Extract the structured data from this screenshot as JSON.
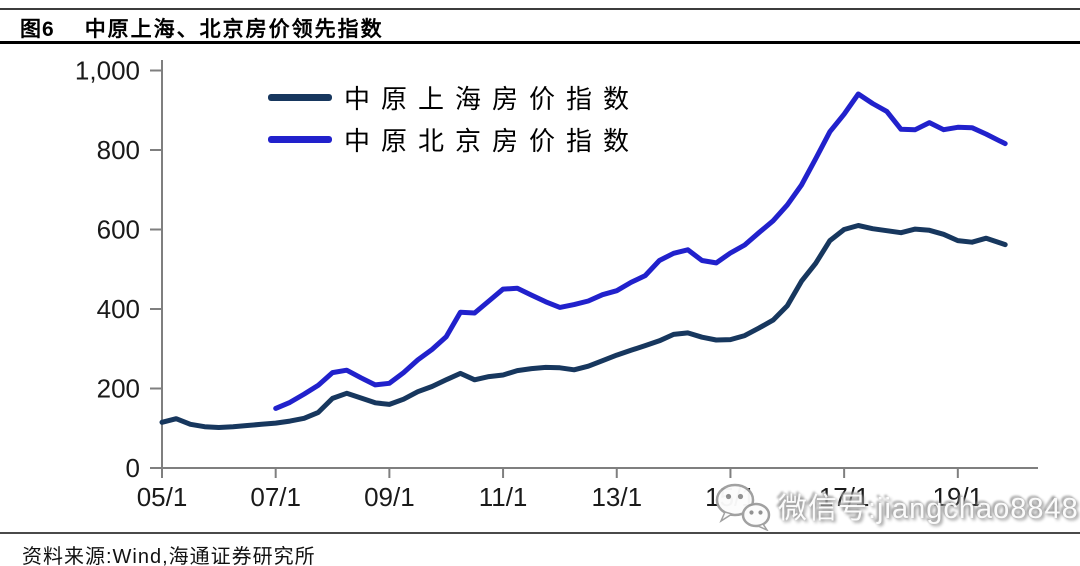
{
  "header": {
    "figure_label": "图6",
    "title": "中原上海、北京房价领先指数"
  },
  "watermark": {
    "icon": "wechat-icon",
    "text": "微信号:jiangchao8848"
  },
  "footer": {
    "source": "资料来源:Wind,海通证券研究所"
  },
  "chart_data": {
    "type": "line",
    "title": "中原上海、北京房价领先指数",
    "xlabel": "",
    "ylabel": "",
    "x_format": "YY/M (year/month)",
    "xticks": [
      "05/1",
      "07/1",
      "09/1",
      "11/1",
      "13/1",
      "15/1",
      "17/1",
      "19/1"
    ],
    "ylim": [
      0,
      1000
    ],
    "yticks": [
      0,
      200,
      400,
      600,
      800,
      1000
    ],
    "ytick_labels": [
      "0",
      "200",
      "400",
      "600",
      "800",
      "1,000"
    ],
    "grid": false,
    "legend_position": "upper-left inside plot",
    "axis_color": "#7f7f7f",
    "series": [
      {
        "name": "中原上海房价指数",
        "color": "#17375E",
        "points": [
          [
            "05/1",
            115
          ],
          [
            "05/4",
            124
          ],
          [
            "05/7",
            110
          ],
          [
            "05/10",
            104
          ],
          [
            "06/1",
            102
          ],
          [
            "06/4",
            104
          ],
          [
            "06/7",
            107
          ],
          [
            "06/10",
            110
          ],
          [
            "07/1",
            113
          ],
          [
            "07/4",
            118
          ],
          [
            "07/7",
            125
          ],
          [
            "07/10",
            140
          ],
          [
            "08/1",
            175
          ],
          [
            "08/4",
            188
          ],
          [
            "08/7",
            176
          ],
          [
            "08/10",
            164
          ],
          [
            "09/1",
            160
          ],
          [
            "09/4",
            173
          ],
          [
            "09/7",
            192
          ],
          [
            "09/10",
            205
          ],
          [
            "10/1",
            222
          ],
          [
            "10/4",
            238
          ],
          [
            "10/7",
            222
          ],
          [
            "10/10",
            230
          ],
          [
            "11/1",
            234
          ],
          [
            "11/4",
            245
          ],
          [
            "11/7",
            250
          ],
          [
            "11/10",
            253
          ],
          [
            "12/1",
            252
          ],
          [
            "12/4",
            247
          ],
          [
            "12/7",
            256
          ],
          [
            "12/10",
            270
          ],
          [
            "13/1",
            284
          ],
          [
            "13/4",
            296
          ],
          [
            "13/7",
            308
          ],
          [
            "13/10",
            320
          ],
          [
            "14/1",
            336
          ],
          [
            "14/4",
            340
          ],
          [
            "14/7",
            329
          ],
          [
            "14/10",
            322
          ],
          [
            "15/1",
            323
          ],
          [
            "15/4",
            333
          ],
          [
            "15/7",
            352
          ],
          [
            "15/10",
            372
          ],
          [
            "16/1",
            408
          ],
          [
            "16/4",
            470
          ],
          [
            "16/7",
            515
          ],
          [
            "16/10",
            572
          ],
          [
            "17/1",
            600
          ],
          [
            "17/4",
            610
          ],
          [
            "17/7",
            602
          ],
          [
            "17/10",
            597
          ],
          [
            "18/1",
            592
          ],
          [
            "18/4",
            601
          ],
          [
            "18/7",
            598
          ],
          [
            "18/10",
            588
          ],
          [
            "19/1",
            572
          ],
          [
            "19/4",
            568
          ],
          [
            "19/7",
            578
          ],
          [
            "19/10",
            566
          ],
          [
            "19/11",
            562
          ]
        ]
      },
      {
        "name": "中原北京房价指数",
        "color": "#2121CC",
        "points": [
          [
            "07/1",
            150
          ],
          [
            "07/4",
            165
          ],
          [
            "07/7",
            186
          ],
          [
            "07/10",
            208
          ],
          [
            "08/1",
            240
          ],
          [
            "08/4",
            246
          ],
          [
            "08/7",
            227
          ],
          [
            "08/10",
            209
          ],
          [
            "09/1",
            213
          ],
          [
            "09/4",
            240
          ],
          [
            "09/7",
            272
          ],
          [
            "09/10",
            298
          ],
          [
            "10/1",
            330
          ],
          [
            "10/4",
            392
          ],
          [
            "10/7",
            390
          ],
          [
            "10/10",
            420
          ],
          [
            "11/1",
            450
          ],
          [
            "11/4",
            452
          ],
          [
            "11/7",
            435
          ],
          [
            "11/10",
            418
          ],
          [
            "12/1",
            404
          ],
          [
            "12/4",
            411
          ],
          [
            "12/7",
            420
          ],
          [
            "12/10",
            436
          ],
          [
            "13/1",
            446
          ],
          [
            "13/4",
            467
          ],
          [
            "13/7",
            484
          ],
          [
            "13/10",
            522
          ],
          [
            "14/1",
            540
          ],
          [
            "14/4",
            549
          ],
          [
            "14/7",
            522
          ],
          [
            "14/10",
            516
          ],
          [
            "15/1",
            541
          ],
          [
            "15/4",
            561
          ],
          [
            "15/7",
            592
          ],
          [
            "15/10",
            622
          ],
          [
            "16/1",
            662
          ],
          [
            "16/4",
            712
          ],
          [
            "16/7",
            778
          ],
          [
            "16/10",
            846
          ],
          [
            "17/1",
            890
          ],
          [
            "17/4",
            941
          ],
          [
            "17/7",
            917
          ],
          [
            "17/10",
            897
          ],
          [
            "18/1",
            852
          ],
          [
            "18/4",
            851
          ],
          [
            "18/7",
            869
          ],
          [
            "18/10",
            851
          ],
          [
            "19/1",
            857
          ],
          [
            "19/4",
            856
          ],
          [
            "19/7",
            840
          ],
          [
            "19/10",
            822
          ],
          [
            "19/11",
            816
          ]
        ]
      }
    ]
  }
}
